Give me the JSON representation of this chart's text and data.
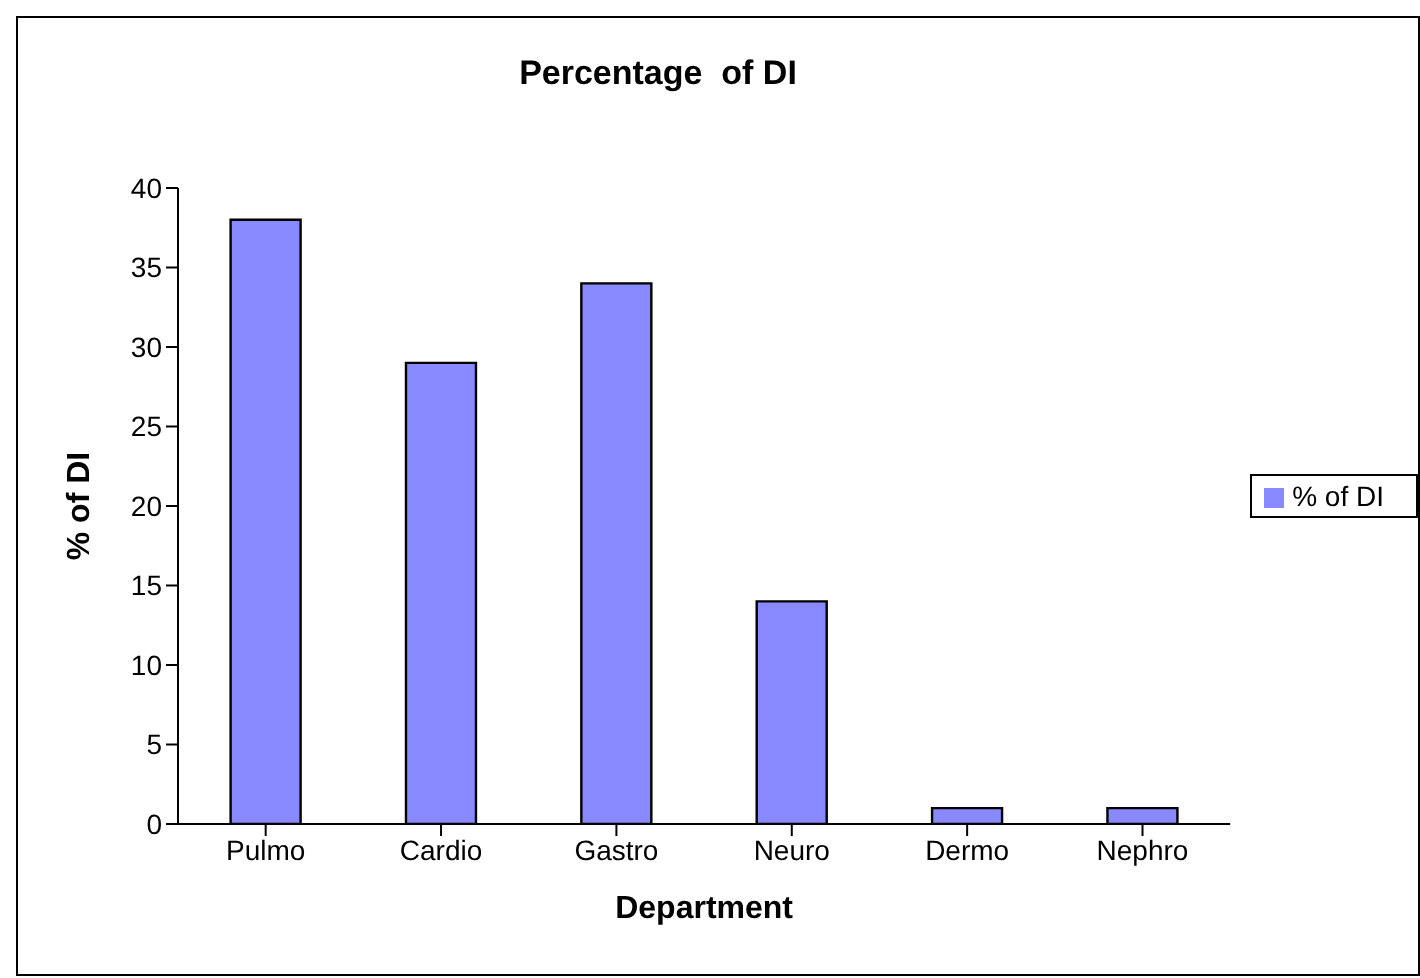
{
  "chart_data": {
    "type": "bar",
    "title": "Percentage  of DI",
    "xlabel": "Department",
    "ylabel": "% of DI",
    "categories": [
      "Pulmo",
      "Cardio",
      "Gastro",
      "Neuro",
      "Dermo",
      "Nephro"
    ],
    "series": [
      {
        "name": "% of DI",
        "color": "#8888ff",
        "values": [
          38,
          29,
          34,
          14,
          1,
          1
        ]
      }
    ],
    "ylim": [
      0,
      40
    ],
    "yticks": [
      0,
      5,
      10,
      15,
      20,
      25,
      30,
      35,
      40
    ],
    "grid": false,
    "legend": "right"
  }
}
